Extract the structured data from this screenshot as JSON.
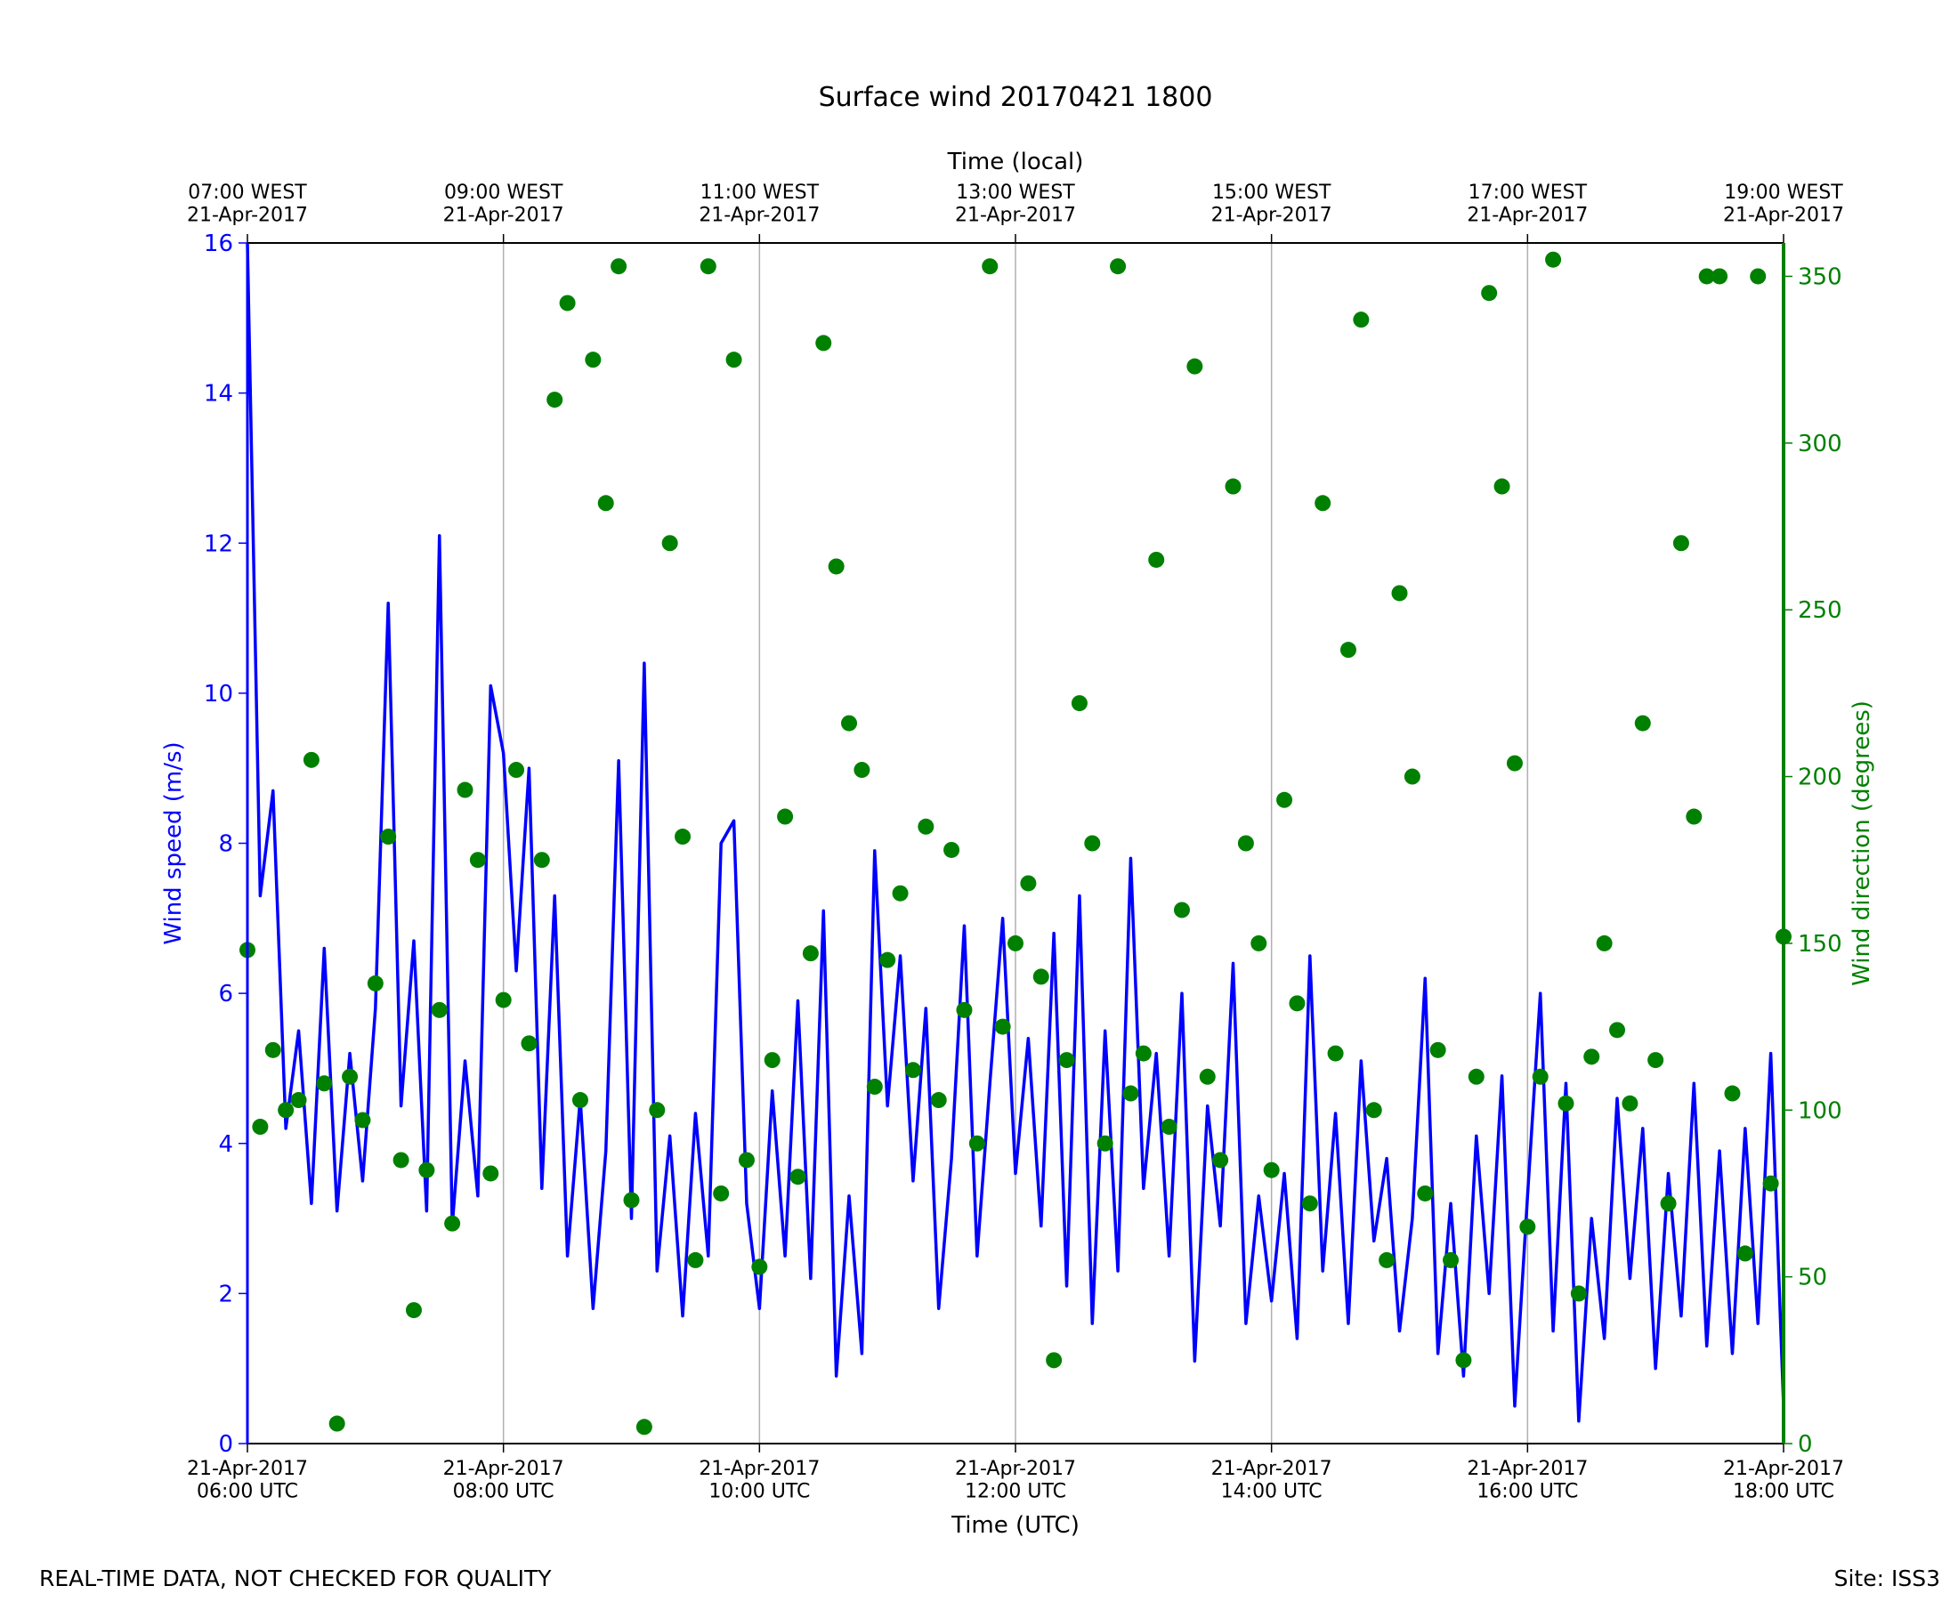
{
  "chart_data": {
    "type": "line",
    "title": "Surface wind 20170421 1800",
    "xlabel": "Time (UTC)",
    "x2label": "Time (local)",
    "ylabel": "Wind speed (m/s)",
    "y2label": "Wind direction (degrees)",
    "x": [
      6,
      6.1,
      6.2,
      6.3,
      6.4,
      6.5,
      6.6,
      6.7,
      6.8,
      6.9,
      7,
      7.1,
      7.2,
      7.3,
      7.4,
      7.5,
      7.6,
      7.7,
      7.8,
      7.9,
      8,
      8.1,
      8.2,
      8.3,
      8.4,
      8.5,
      8.6,
      8.7,
      8.8,
      8.9,
      9,
      9.1,
      9.2,
      9.3,
      9.4,
      9.5,
      9.6,
      9.7,
      9.8,
      9.9,
      10,
      10.1,
      10.2,
      10.3,
      10.4,
      10.5,
      10.6,
      10.7,
      10.8,
      10.9,
      11,
      11.1,
      11.2,
      11.3,
      11.4,
      11.5,
      11.6,
      11.7,
      11.8,
      11.9,
      12,
      12.1,
      12.2,
      12.3,
      12.4,
      12.5,
      12.6,
      12.7,
      12.8,
      12.9,
      13,
      13.1,
      13.2,
      13.3,
      13.4,
      13.5,
      13.6,
      13.7,
      13.8,
      13.9,
      14,
      14.1,
      14.2,
      14.3,
      14.4,
      14.5,
      14.6,
      14.7,
      14.8,
      14.9,
      15,
      15.1,
      15.2,
      15.3,
      15.4,
      15.5,
      15.6,
      15.7,
      15.8,
      15.9,
      16,
      16.1,
      16.2,
      16.3,
      16.4,
      16.5,
      16.6,
      16.7,
      16.8,
      16.9,
      17,
      17.1,
      17.2,
      17.3,
      17.4,
      17.5,
      17.6,
      17.7,
      17.8,
      17.9,
      18
    ],
    "series": [
      {
        "type": "line",
        "color": "#0000ff",
        "axis": "y",
        "values": [
          16,
          7.3,
          8.7,
          4.2,
          5.5,
          3.2,
          6.6,
          3.1,
          5.2,
          3.5,
          5.8,
          11.2,
          4.5,
          6.7,
          3.1,
          12.1,
          2.9,
          5.1,
          3.3,
          10.1,
          9.2,
          6.3,
          9.0,
          3.4,
          7.3,
          2.5,
          4.6,
          1.8,
          3.9,
          9.1,
          3.0,
          10.4,
          2.3,
          4.1,
          1.7,
          4.4,
          2.5,
          8.0,
          8.3,
          3.2,
          1.8,
          4.7,
          2.5,
          5.9,
          2.2,
          7.1,
          0.9,
          3.3,
          1.2,
          7.9,
          4.5,
          6.5,
          3.5,
          5.8,
          1.8,
          3.8,
          6.9,
          2.5,
          4.8,
          7.0,
          3.6,
          5.4,
          2.9,
          6.8,
          2.1,
          7.3,
          1.6,
          5.5,
          2.3,
          7.8,
          3.4,
          5.2,
          2.5,
          6.0,
          1.1,
          4.5,
          2.9,
          6.4,
          1.6,
          3.3,
          1.9,
          3.6,
          1.4,
          6.5,
          2.3,
          4.4,
          1.6,
          5.1,
          2.7,
          3.8,
          1.5,
          3.0,
          6.2,
          1.2,
          3.2,
          0.9,
          4.1,
          2.0,
          4.9,
          0.5,
          3.3,
          6.0,
          1.5,
          4.8,
          0.3,
          3.0,
          1.4,
          4.6,
          2.2,
          4.2,
          1.0,
          3.6,
          1.7,
          4.8,
          1.3,
          3.9,
          1.2,
          4.2,
          1.6,
          5.2,
          0.5
        ]
      },
      {
        "type": "scatter",
        "color": "#008000",
        "axis": "y2",
        "values": [
          148,
          95,
          118,
          100,
          103,
          205,
          108,
          6,
          110,
          97,
          138,
          182,
          85,
          40,
          82,
          130,
          66,
          196,
          175,
          81,
          133,
          202,
          120,
          175,
          313,
          342,
          103,
          325,
          282,
          353,
          73,
          5,
          100,
          270,
          182,
          55,
          353,
          75,
          325,
          85,
          53,
          115,
          188,
          80,
          147,
          330,
          263,
          216,
          202,
          107,
          145,
          165,
          112,
          185,
          103,
          178,
          130,
          90,
          353,
          125,
          150,
          168,
          140,
          25,
          115,
          222,
          180,
          90,
          353,
          105,
          117,
          265,
          95,
          160,
          323,
          110,
          85,
          287,
          180,
          150,
          82,
          193,
          132,
          72,
          282,
          117,
          238,
          337,
          100,
          55,
          255,
          200,
          75,
          118,
          55,
          25,
          110,
          345,
          287,
          204,
          65,
          110,
          355,
          102,
          45,
          116,
          150,
          124,
          102,
          216,
          115,
          72,
          270,
          188,
          350,
          350,
          105,
          57,
          350,
          78,
          152
        ]
      }
    ],
    "ylim": [
      0,
      16
    ],
    "yticks": [
      0,
      2,
      4,
      6,
      8,
      10,
      12,
      14,
      16
    ],
    "y2lim": [
      0,
      360
    ],
    "y2ticks": [
      0,
      50,
      100,
      150,
      200,
      250,
      300,
      350
    ],
    "xlim": [
      6,
      18
    ],
    "xticks": [
      {
        "value": 6,
        "label": "21-Apr-2017\n06:00 UTC"
      },
      {
        "value": 8,
        "label": "21-Apr-2017\n08:00 UTC"
      },
      {
        "value": 10,
        "label": "21-Apr-2017\n10:00 UTC"
      },
      {
        "value": 12,
        "label": "21-Apr-2017\n12:00 UTC"
      },
      {
        "value": 14,
        "label": "21-Apr-2017\n14:00 UTC"
      },
      {
        "value": 16,
        "label": "21-Apr-2017\n16:00 UTC"
      },
      {
        "value": 18,
        "label": "21-Apr-2017\n18:00 UTC"
      }
    ],
    "x2ticks": [
      {
        "value": 6,
        "label": "07:00 WEST\n21-Apr-2017"
      },
      {
        "value": 8,
        "label": "09:00 WEST\n21-Apr-2017"
      },
      {
        "value": 10,
        "label": "11:00 WEST\n21-Apr-2017"
      },
      {
        "value": 12,
        "label": "13:00 WEST\n21-Apr-2017"
      },
      {
        "value": 14,
        "label": "15:00 WEST\n21-Apr-2017"
      },
      {
        "value": 16,
        "label": "17:00 WEST\n21-Apr-2017"
      },
      {
        "value": 18,
        "label": "19:00 WEST\n21-Apr-2017"
      }
    ],
    "grid": "x"
  },
  "footer": {
    "left": "REAL-TIME DATA, NOT CHECKED FOR QUALITY",
    "right": "Site: ISS3"
  }
}
